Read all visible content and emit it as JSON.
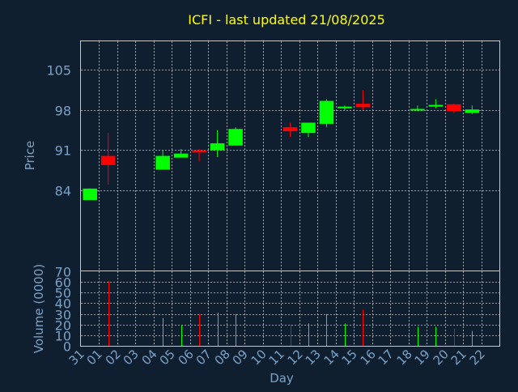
{
  "chart_data": [
    {
      "type": "candlestick",
      "title": "ICFI - last updated 21/08/2025",
      "ylabel": "Price",
      "xlabel": "",
      "ylim": [
        70,
        110
      ],
      "yticks": [
        84,
        91,
        98,
        105
      ],
      "grid": true,
      "colors": {
        "up": "#00ff00",
        "down": "#ff0000",
        "title": "#ffff00",
        "axis_text": "#7aa2c8",
        "grid": "#c8c8c8",
        "background": "#0f1f30"
      },
      "candles": [
        {
          "day": "31",
          "open": 82.3,
          "close": 84.3,
          "high": 84.3,
          "low": 82.3
        },
        {
          "day": "01",
          "open": 90.0,
          "close": 88.4,
          "high": 94.0,
          "low": 85.0
        },
        {
          "day": "04",
          "open": 87.6,
          "close": 90.0,
          "high": 90.9,
          "low": 87.6
        },
        {
          "day": "05",
          "open": 89.7,
          "close": 90.4,
          "high": 91.2,
          "low": 89.7
        },
        {
          "day": "06",
          "open": 91.0,
          "close": 90.6,
          "high": 91.2,
          "low": 89.0
        },
        {
          "day": "07",
          "open": 91.0,
          "close": 92.2,
          "high": 94.5,
          "low": 89.8
        },
        {
          "day": "08",
          "open": 91.8,
          "close": 94.7,
          "high": 95.0,
          "low": 91.8
        },
        {
          "day": "11",
          "open": 95.0,
          "close": 94.3,
          "high": 95.8,
          "low": 93.3
        },
        {
          "day": "12",
          "open": 94.0,
          "close": 95.8,
          "high": 95.8,
          "low": 93.3
        },
        {
          "day": "13",
          "open": 95.6,
          "close": 99.6,
          "high": 99.9,
          "low": 95.0
        },
        {
          "day": "14",
          "open": 98.3,
          "close": 98.6,
          "high": 98.8,
          "low": 98.0
        },
        {
          "day": "15",
          "open": 99.1,
          "close": 98.5,
          "high": 101.5,
          "low": 98.0
        },
        {
          "day": "18",
          "open": 98.0,
          "close": 98.2,
          "high": 98.8,
          "low": 97.8
        },
        {
          "day": "19",
          "open": 98.6,
          "close": 98.9,
          "high": 99.9,
          "low": 98.3
        },
        {
          "day": "20",
          "open": 99.0,
          "close": 97.8,
          "high": 99.1,
          "low": 97.5
        },
        {
          "day": "21",
          "open": 97.5,
          "close": 98.1,
          "high": 98.8,
          "low": 97.3
        }
      ]
    },
    {
      "type": "bar",
      "ylabel": "Volume (0000)",
      "xlabel": "Day",
      "ylim": [
        0,
        70
      ],
      "yticks": [
        0,
        10,
        20,
        30,
        40,
        50,
        60,
        70
      ],
      "categories": [
        "31",
        "01",
        "02",
        "03",
        "04",
        "05",
        "06",
        "07",
        "08",
        "09",
        "10",
        "11",
        "12",
        "13",
        "14",
        "15",
        "16",
        "17",
        "18",
        "19",
        "20",
        "21",
        "22"
      ],
      "volumes": [
        {
          "day": "01",
          "value": 61,
          "dir": "down"
        },
        {
          "day": "04",
          "value": 26,
          "dir": "up"
        },
        {
          "day": "05",
          "value": 19,
          "dir": "up"
        },
        {
          "day": "06",
          "value": 30,
          "dir": "down"
        },
        {
          "day": "07",
          "value": 31,
          "dir": "up"
        },
        {
          "day": "08",
          "value": 30,
          "dir": "up"
        },
        {
          "day": "11",
          "value": 20,
          "dir": "down"
        },
        {
          "day": "12",
          "value": 21,
          "dir": "up"
        },
        {
          "day": "13",
          "value": 30,
          "dir": "up"
        },
        {
          "day": "14",
          "value": 21,
          "dir": "up"
        },
        {
          "day": "15",
          "value": 34,
          "dir": "down"
        },
        {
          "day": "18",
          "value": 18,
          "dir": "up"
        },
        {
          "day": "19",
          "value": 18,
          "dir": "up"
        },
        {
          "day": "20",
          "value": 16,
          "dir": "down"
        },
        {
          "day": "21",
          "value": 14,
          "dir": "up"
        }
      ]
    }
  ]
}
